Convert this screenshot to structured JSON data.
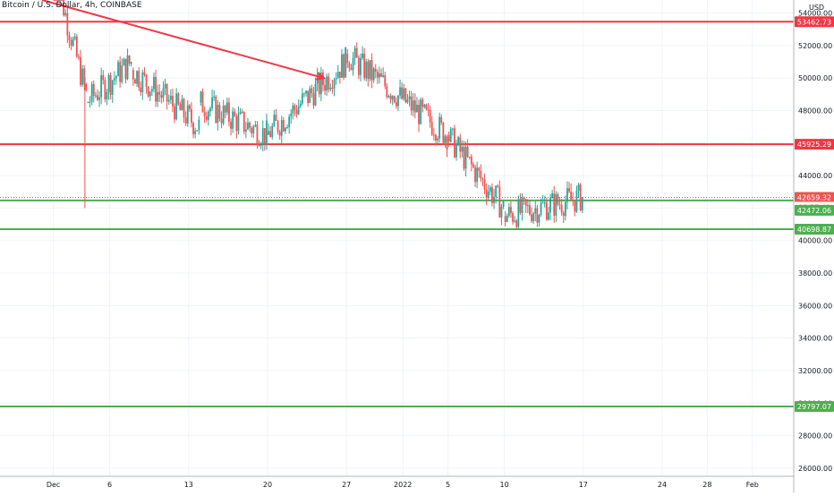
{
  "chart_title": "Bitcoin / U.S. Dollar, 4h, COINBASE",
  "currency_label": "USD",
  "colors": {
    "up": "#26a69a",
    "down": "#ef5350",
    "resistance_line": "#f23645",
    "support_line": "#4caf50",
    "grid": "#f0f3fa",
    "axis_text": "#131722",
    "arrow": "#f23645",
    "dotted": "#26a69a"
  },
  "chart_data": {
    "type": "candlestick",
    "instrument": "Bitcoin / U.S. Dollar",
    "interval": "4h",
    "exchange": "COINBASE",
    "x_ticks": [
      "Dec",
      "6",
      "13",
      "20",
      "27",
      "2022",
      "5",
      "10",
      "17",
      "24",
      "28",
      "Feb"
    ],
    "y_ticks": [
      26000,
      28000,
      30000,
      32000,
      34000,
      36000,
      38000,
      40000,
      42000,
      44000,
      46000,
      48000,
      50000,
      52000,
      54000
    ],
    "ylim": [
      25500,
      54800
    ],
    "price_labels": [
      {
        "value": "53462.73",
        "kind": "resistance"
      },
      {
        "value": "45925.29",
        "kind": "resistance"
      },
      {
        "value": "42659.32",
        "kind": "current"
      },
      {
        "value": "03:57:49",
        "kind": "countdown"
      },
      {
        "value": "42472.06",
        "kind": "support"
      },
      {
        "value": "40698.87",
        "kind": "support"
      },
      {
        "value": "29797.07",
        "kind": "support"
      }
    ],
    "horizontal_lines": [
      {
        "price": 53462.73,
        "color": "red"
      },
      {
        "price": 45925.29,
        "color": "red"
      },
      {
        "price": 42472.06,
        "color": "green"
      },
      {
        "price": 40698.87,
        "color": "green"
      },
      {
        "price": 29797.07,
        "color": "green"
      }
    ],
    "ohlc_segments": [
      {
        "from": "Dec 1",
        "to": "Dec 4",
        "open": 57000,
        "close": 49000,
        "low": 42000
      },
      {
        "from": "Dec 4",
        "to": "Dec 8",
        "open": 48500,
        "close": 51000
      },
      {
        "from": "Dec 8",
        "to": "Dec 14",
        "open": 50500,
        "close": 47000
      },
      {
        "from": "Dec 14",
        "to": "Dec 20",
        "open": 48500,
        "close": 46500
      },
      {
        "from": "Dec 20",
        "to": "Dec 27",
        "open": 46500,
        "close": 51000
      },
      {
        "from": "Dec 27",
        "to": "Jan 5",
        "open": 51500,
        "close": 46500
      },
      {
        "from": "Jan 5",
        "to": "Jan 10",
        "open": 46500,
        "close": 42000
      },
      {
        "from": "Jan 10",
        "to": "Jan 17",
        "open": 41500,
        "close": 42659.32
      }
    ],
    "trend_arrow": {
      "from": "Nov 30",
      "to": "Dec 25",
      "start_price": 54800,
      "end_price": 50000
    }
  }
}
